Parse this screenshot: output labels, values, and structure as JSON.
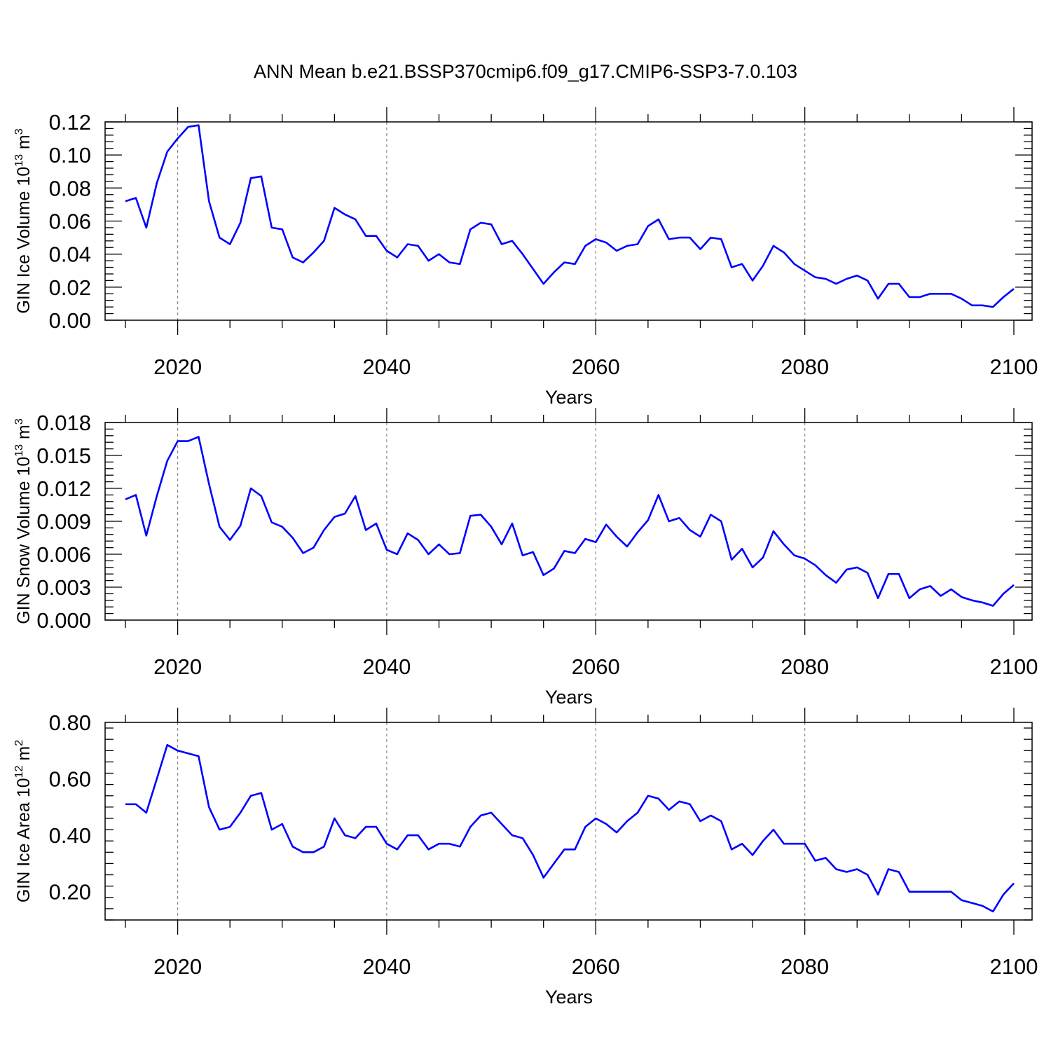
{
  "title": "ANN Mean b.e21.BSSP370cmip6.f09_g17.CMIP6-SSP3-7.0.103",
  "line_color": "#0000ff",
  "chart_data": [
    {
      "type": "line",
      "ylabel": "GIN Ice Volume 10",
      "ylabel_sup": "13",
      "ylabel_unit": "m",
      "ylabel_unit_sup": "3",
      "xlabel": "Years",
      "xlim": [
        2015,
        2100
      ],
      "ylim": [
        0,
        0.12
      ],
      "x_ticks": [
        2020,
        2040,
        2060,
        2080,
        2100
      ],
      "y_ticks": [
        "0.00",
        "0.02",
        "0.04",
        "0.06",
        "0.08",
        "0.10",
        "0.12"
      ],
      "y_tick_values": [
        0,
        0.02,
        0.04,
        0.06,
        0.08,
        0.1,
        0.12
      ],
      "grid": "vertical dashed at major x ticks",
      "series": [
        {
          "x": [
            2015,
            2016,
            2017,
            2018,
            2019,
            2020,
            2021,
            2022,
            2023,
            2024,
            2025,
            2026,
            2027,
            2028,
            2029,
            2030,
            2031,
            2032,
            2033,
            2034,
            2035,
            2036,
            2037,
            2038,
            2039,
            2040,
            2041,
            2042,
            2043,
            2044,
            2045,
            2046,
            2047,
            2048,
            2049,
            2050,
            2051,
            2052,
            2053,
            2054,
            2055,
            2056,
            2057,
            2058,
            2059,
            2060,
            2061,
            2062,
            2063,
            2064,
            2065,
            2066,
            2067,
            2068,
            2069,
            2070,
            2071,
            2072,
            2073,
            2074,
            2075,
            2076,
            2077,
            2078,
            2079,
            2080,
            2081,
            2082,
            2083,
            2084,
            2085,
            2086,
            2087,
            2088,
            2089,
            2090,
            2091,
            2092,
            2093,
            2094,
            2095,
            2096,
            2097,
            2098,
            2099,
            2100
          ],
          "values": [
            0.072,
            0.074,
            0.056,
            0.083,
            0.102,
            0.11,
            0.117,
            0.118,
            0.072,
            0.05,
            0.046,
            0.059,
            0.086,
            0.087,
            0.056,
            0.055,
            0.038,
            0.035,
            0.041,
            0.048,
            0.068,
            0.064,
            0.061,
            0.051,
            0.051,
            0.042,
            0.038,
            0.046,
            0.045,
            0.036,
            0.04,
            0.035,
            0.034,
            0.055,
            0.059,
            0.058,
            0.046,
            0.048,
            0.04,
            0.031,
            0.022,
            0.029,
            0.035,
            0.034,
            0.045,
            0.049,
            0.047,
            0.042,
            0.045,
            0.046,
            0.057,
            0.061,
            0.049,
            0.05,
            0.05,
            0.043,
            0.05,
            0.049,
            0.032,
            0.034,
            0.024,
            0.033,
            0.045,
            0.041,
            0.034,
            0.03,
            0.026,
            0.025,
            0.022,
            0.025,
            0.027,
            0.024,
            0.013,
            0.022,
            0.022,
            0.014,
            0.014,
            0.016,
            0.016,
            0.016,
            0.013,
            0.009,
            0.009,
            0.008,
            0.014,
            0.019
          ]
        }
      ]
    },
    {
      "type": "line",
      "ylabel": "GIN Snow Volume 10",
      "ylabel_sup": "13",
      "ylabel_unit": "m",
      "ylabel_unit_sup": "3",
      "xlabel": "Years",
      "xlim": [
        2015,
        2100
      ],
      "ylim": [
        0,
        0.018
      ],
      "x_ticks": [
        2020,
        2040,
        2060,
        2080,
        2100
      ],
      "y_ticks": [
        "0.000",
        "0.003",
        "0.006",
        "0.009",
        "0.012",
        "0.015",
        "0.018"
      ],
      "y_tick_values": [
        0,
        0.003,
        0.006,
        0.009,
        0.012,
        0.015,
        0.018
      ],
      "grid": "vertical dashed at major x ticks",
      "series": [
        {
          "x": [
            2015,
            2016,
            2017,
            2018,
            2019,
            2020,
            2021,
            2022,
            2023,
            2024,
            2025,
            2026,
            2027,
            2028,
            2029,
            2030,
            2031,
            2032,
            2033,
            2034,
            2035,
            2036,
            2037,
            2038,
            2039,
            2040,
            2041,
            2042,
            2043,
            2044,
            2045,
            2046,
            2047,
            2048,
            2049,
            2050,
            2051,
            2052,
            2053,
            2054,
            2055,
            2056,
            2057,
            2058,
            2059,
            2060,
            2061,
            2062,
            2063,
            2064,
            2065,
            2066,
            2067,
            2068,
            2069,
            2070,
            2071,
            2072,
            2073,
            2074,
            2075,
            2076,
            2077,
            2078,
            2079,
            2080,
            2081,
            2082,
            2083,
            2084,
            2085,
            2086,
            2087,
            2088,
            2089,
            2090,
            2091,
            2092,
            2093,
            2094,
            2095,
            2096,
            2097,
            2098,
            2099,
            2100
          ],
          "values": [
            0.011,
            0.0114,
            0.0077,
            0.0113,
            0.0145,
            0.0163,
            0.0163,
            0.0167,
            0.0124,
            0.0085,
            0.0073,
            0.0086,
            0.012,
            0.0113,
            0.0089,
            0.0085,
            0.0075,
            0.0061,
            0.0066,
            0.0082,
            0.0094,
            0.0097,
            0.0113,
            0.0082,
            0.0088,
            0.0064,
            0.006,
            0.0079,
            0.0073,
            0.006,
            0.0069,
            0.006,
            0.0061,
            0.0095,
            0.0096,
            0.0085,
            0.0069,
            0.0088,
            0.0059,
            0.0062,
            0.0041,
            0.0047,
            0.0063,
            0.0061,
            0.0074,
            0.0071,
            0.0087,
            0.0076,
            0.0067,
            0.008,
            0.0091,
            0.0114,
            0.009,
            0.0093,
            0.0082,
            0.0076,
            0.0096,
            0.009,
            0.0055,
            0.0065,
            0.0048,
            0.0057,
            0.0081,
            0.0069,
            0.0059,
            0.0056,
            0.005,
            0.0041,
            0.0034,
            0.0046,
            0.0048,
            0.0043,
            0.002,
            0.0042,
            0.0042,
            0.002,
            0.0028,
            0.0031,
            0.0022,
            0.0028,
            0.0021,
            0.0018,
            0.0016,
            0.0013,
            0.0024,
            0.0032
          ]
        }
      ]
    },
    {
      "type": "line",
      "ylabel": "GIN Ice Area 10",
      "ylabel_sup": "12",
      "ylabel_unit": "m",
      "ylabel_unit_sup": "2",
      "xlabel": "Years",
      "xlim": [
        2015,
        2100
      ],
      "ylim": [
        0.1,
        0.8
      ],
      "x_ticks": [
        2020,
        2040,
        2060,
        2080,
        2100
      ],
      "y_ticks": [
        "0.20",
        "0.40",
        "0.60",
        "0.80"
      ],
      "y_tick_values": [
        0.2,
        0.4,
        0.6,
        0.8
      ],
      "grid": "vertical dashed at major x ticks",
      "series": [
        {
          "x": [
            2015,
            2016,
            2017,
            2018,
            2019,
            2020,
            2021,
            2022,
            2023,
            2024,
            2025,
            2026,
            2027,
            2028,
            2029,
            2030,
            2031,
            2032,
            2033,
            2034,
            2035,
            2036,
            2037,
            2038,
            2039,
            2040,
            2041,
            2042,
            2043,
            2044,
            2045,
            2046,
            2047,
            2048,
            2049,
            2050,
            2051,
            2052,
            2053,
            2054,
            2055,
            2056,
            2057,
            2058,
            2059,
            2060,
            2061,
            2062,
            2063,
            2064,
            2065,
            2066,
            2067,
            2068,
            2069,
            2070,
            2071,
            2072,
            2073,
            2074,
            2075,
            2076,
            2077,
            2078,
            2079,
            2080,
            2081,
            2082,
            2083,
            2084,
            2085,
            2086,
            2087,
            2088,
            2089,
            2090,
            2091,
            2092,
            2093,
            2094,
            2095,
            2096,
            2097,
            2098,
            2099,
            2100
          ],
          "values": [
            0.51,
            0.51,
            0.48,
            0.6,
            0.72,
            0.7,
            0.69,
            0.68,
            0.5,
            0.42,
            0.43,
            0.48,
            0.54,
            0.55,
            0.42,
            0.44,
            0.36,
            0.34,
            0.34,
            0.36,
            0.46,
            0.4,
            0.39,
            0.43,
            0.43,
            0.37,
            0.35,
            0.4,
            0.4,
            0.35,
            0.37,
            0.37,
            0.36,
            0.43,
            0.47,
            0.48,
            0.44,
            0.4,
            0.39,
            0.33,
            0.25,
            0.3,
            0.35,
            0.35,
            0.43,
            0.46,
            0.44,
            0.41,
            0.45,
            0.48,
            0.54,
            0.53,
            0.49,
            0.52,
            0.51,
            0.45,
            0.47,
            0.45,
            0.35,
            0.37,
            0.33,
            0.38,
            0.42,
            0.37,
            0.37,
            0.37,
            0.31,
            0.32,
            0.28,
            0.27,
            0.28,
            0.26,
            0.19,
            0.28,
            0.27,
            0.2,
            0.2,
            0.2,
            0.2,
            0.2,
            0.17,
            0.16,
            0.15,
            0.13,
            0.19,
            0.23
          ]
        }
      ]
    }
  ]
}
